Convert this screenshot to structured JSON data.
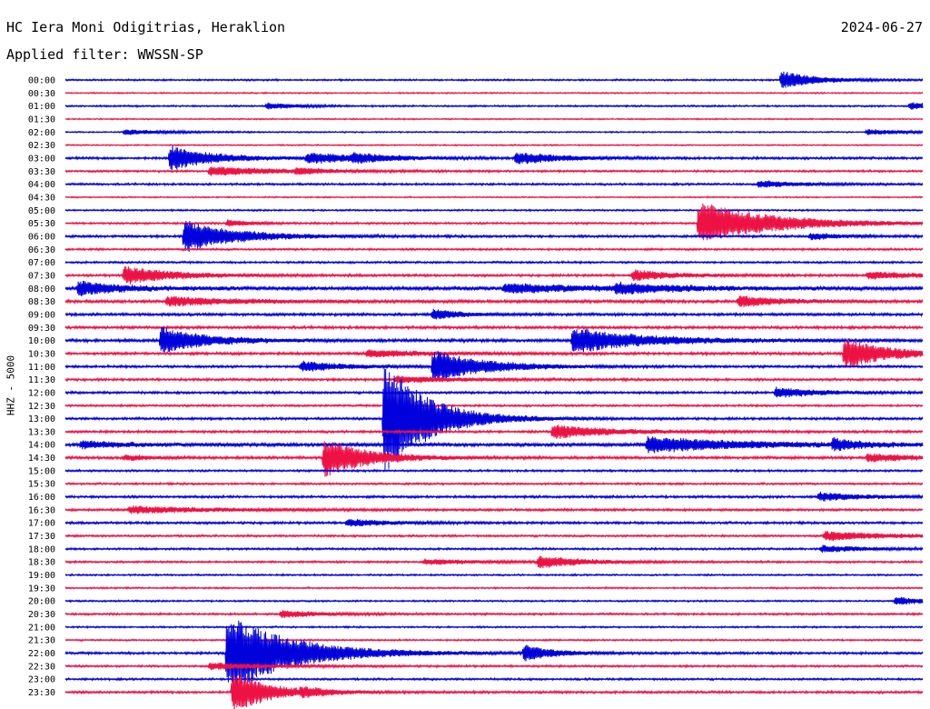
{
  "header": {
    "station": "HC Iera Moni Odigitrias, Heraklion",
    "date": "2024-06-27",
    "filter": "Applied filter: WWSSN-SP"
  },
  "colors": {
    "even_trace": "#0000dd",
    "odd_trace": "#ee1144",
    "background": "#ffffff",
    "text": "#000000"
  },
  "chart_data": {
    "type": "line",
    "title": "HC Iera Moni Odigitrias, Heraklion",
    "subtitle": "Applied filter: WWSSN-SP",
    "ylabel": "HHZ - 5000",
    "xlabel": "",
    "grid": false,
    "legend": "none",
    "row_labels": [
      "00:00",
      "00:30",
      "01:00",
      "01:30",
      "02:00",
      "02:30",
      "03:00",
      "03:30",
      "04:00",
      "04:30",
      "05:00",
      "05:30",
      "06:00",
      "06:30",
      "07:00",
      "07:30",
      "08:00",
      "08:30",
      "09:00",
      "09:30",
      "10:00",
      "10:30",
      "11:00",
      "11:30",
      "12:00",
      "12:30",
      "13:00",
      "13:30",
      "14:00",
      "14:30",
      "15:00",
      "15:30",
      "16:00",
      "16:30",
      "17:00",
      "17:30",
      "18:00",
      "18:30",
      "19:00",
      "19:30",
      "20:00",
      "20:30",
      "21:00",
      "21:30",
      "22:00",
      "22:30",
      "23:00",
      "23:30"
    ],
    "row_minutes": 30,
    "noise_level": [
      1,
      0.8,
      1,
      0.8,
      0.8,
      0.8,
      1.4,
      1.2,
      1.2,
      0.8,
      1,
      1.2,
      1.4,
      1.2,
      1.2,
      1.4,
      2.2,
      1.8,
      1.6,
      1.6,
      1.8,
      1.6,
      1.4,
      1.4,
      1.4,
      1.2,
      1.4,
      1.4,
      2.2,
      1.6,
      1.2,
      1.2,
      1.4,
      1.4,
      1.4,
      1.2,
      1.2,
      1.2,
      1,
      1,
      1,
      1.2,
      1,
      1,
      1.4,
      1.2,
      1.2,
      1.4
    ],
    "events": [
      {
        "row": 0,
        "minute": 25.0,
        "amplitude": 10,
        "duration": 1.2
      },
      {
        "row": 2,
        "minute": 7.0,
        "amplitude": 4,
        "duration": 1.0
      },
      {
        "row": 2,
        "minute": 29.5,
        "amplitude": 4,
        "duration": 1.2
      },
      {
        "row": 4,
        "minute": 2.0,
        "amplitude": 3,
        "duration": 1.5
      },
      {
        "row": 4,
        "minute": 28.0,
        "amplitude": 3,
        "duration": 1.5
      },
      {
        "row": 6,
        "minute": 3.6,
        "amplitude": 14,
        "duration": 1.5
      },
      {
        "row": 6,
        "minute": 8.4,
        "amplitude": 6,
        "duration": 1.8
      },
      {
        "row": 6,
        "minute": 10.0,
        "amplitude": 4,
        "duration": 1.2
      },
      {
        "row": 6,
        "minute": 15.7,
        "amplitude": 7,
        "duration": 1.5
      },
      {
        "row": 7,
        "minute": 5.0,
        "amplitude": 5,
        "duration": 2.5
      },
      {
        "row": 7,
        "minute": 8.0,
        "amplitude": 3,
        "duration": 1.0
      },
      {
        "row": 8,
        "minute": 24.2,
        "amplitude": 4,
        "duration": 1.5
      },
      {
        "row": 11,
        "minute": 22.1,
        "amplitude": 24,
        "duration": 2.5
      },
      {
        "row": 11,
        "minute": 5.6,
        "amplitude": 4,
        "duration": 0.8
      },
      {
        "row": 12,
        "minute": 4.1,
        "amplitude": 18,
        "duration": 1.8
      },
      {
        "row": 12,
        "minute": 26.0,
        "amplitude": 4,
        "duration": 1.0
      },
      {
        "row": 15,
        "minute": 2.0,
        "amplitude": 10,
        "duration": 1.8
      },
      {
        "row": 15,
        "minute": 19.8,
        "amplitude": 6,
        "duration": 1.5
      },
      {
        "row": 15,
        "minute": 28.0,
        "amplitude": 4,
        "duration": 2.0
      },
      {
        "row": 16,
        "minute": 0.4,
        "amplitude": 8,
        "duration": 1.5
      },
      {
        "row": 16,
        "minute": 15.3,
        "amplitude": 5,
        "duration": 3.0
      },
      {
        "row": 16,
        "minute": 19.2,
        "amplitude": 5,
        "duration": 2.0
      },
      {
        "row": 17,
        "minute": 3.5,
        "amplitude": 5,
        "duration": 2.5
      },
      {
        "row": 17,
        "minute": 23.5,
        "amplitude": 6,
        "duration": 1.5
      },
      {
        "row": 18,
        "minute": 12.8,
        "amplitude": 6,
        "duration": 1.0
      },
      {
        "row": 20,
        "minute": 3.3,
        "amplitude": 16,
        "duration": 1.5
      },
      {
        "row": 20,
        "minute": 17.7,
        "amplitude": 14,
        "duration": 2.5
      },
      {
        "row": 21,
        "minute": 10.5,
        "amplitude": 4,
        "duration": 2.0
      },
      {
        "row": 21,
        "minute": 27.2,
        "amplitude": 18,
        "duration": 1.5
      },
      {
        "row": 22,
        "minute": 8.2,
        "amplitude": 6,
        "duration": 1.5
      },
      {
        "row": 22,
        "minute": 12.8,
        "amplitude": 18,
        "duration": 1.8
      },
      {
        "row": 23,
        "minute": 11.5,
        "amplitude": 4,
        "duration": 2.0
      },
      {
        "row": 24,
        "minute": 24.8,
        "amplitude": 6,
        "duration": 1.5
      },
      {
        "row": 26,
        "minute": 11.1,
        "amplitude": 68,
        "duration": 1.5
      },
      {
        "row": 27,
        "minute": 17.0,
        "amplitude": 8,
        "duration": 2.0
      },
      {
        "row": 28,
        "minute": 20.3,
        "amplitude": 9,
        "duration": 3.0
      },
      {
        "row": 28,
        "minute": 26.8,
        "amplitude": 6,
        "duration": 1.0
      },
      {
        "row": 28,
        "minute": 0.5,
        "amplitude": 4,
        "duration": 1.5
      },
      {
        "row": 29,
        "minute": 9.0,
        "amplitude": 22,
        "duration": 1.5
      },
      {
        "row": 29,
        "minute": 28.0,
        "amplitude": 5,
        "duration": 1.5
      },
      {
        "row": 29,
        "minute": 2.0,
        "amplitude": 3,
        "duration": 1.0
      },
      {
        "row": 32,
        "minute": 26.3,
        "amplitude": 5,
        "duration": 1.5
      },
      {
        "row": 33,
        "minute": 2.2,
        "amplitude": 4,
        "duration": 3.0
      },
      {
        "row": 34,
        "minute": 9.8,
        "amplitude": 4,
        "duration": 1.5
      },
      {
        "row": 35,
        "minute": 26.5,
        "amplitude": 5,
        "duration": 2.5
      },
      {
        "row": 36,
        "minute": 26.4,
        "amplitude": 4,
        "duration": 1.5
      },
      {
        "row": 37,
        "minute": 16.5,
        "amplitude": 7,
        "duration": 1.5
      },
      {
        "row": 37,
        "minute": 12.5,
        "amplitude": 3,
        "duration": 2.0
      },
      {
        "row": 40,
        "minute": 29.0,
        "amplitude": 5,
        "duration": 1.0
      },
      {
        "row": 41,
        "minute": 7.5,
        "amplitude": 4,
        "duration": 1.5
      },
      {
        "row": 44,
        "minute": 5.6,
        "amplitude": 45,
        "duration": 2.2
      },
      {
        "row": 44,
        "minute": 16.0,
        "amplitude": 9,
        "duration": 1.0
      },
      {
        "row": 45,
        "minute": 5.0,
        "amplitude": 4,
        "duration": 2.0
      },
      {
        "row": 47,
        "minute": 5.8,
        "amplitude": 26,
        "duration": 1.2
      },
      {
        "row": 47,
        "minute": 8.2,
        "amplitude": 4,
        "duration": 1.0
      }
    ]
  }
}
